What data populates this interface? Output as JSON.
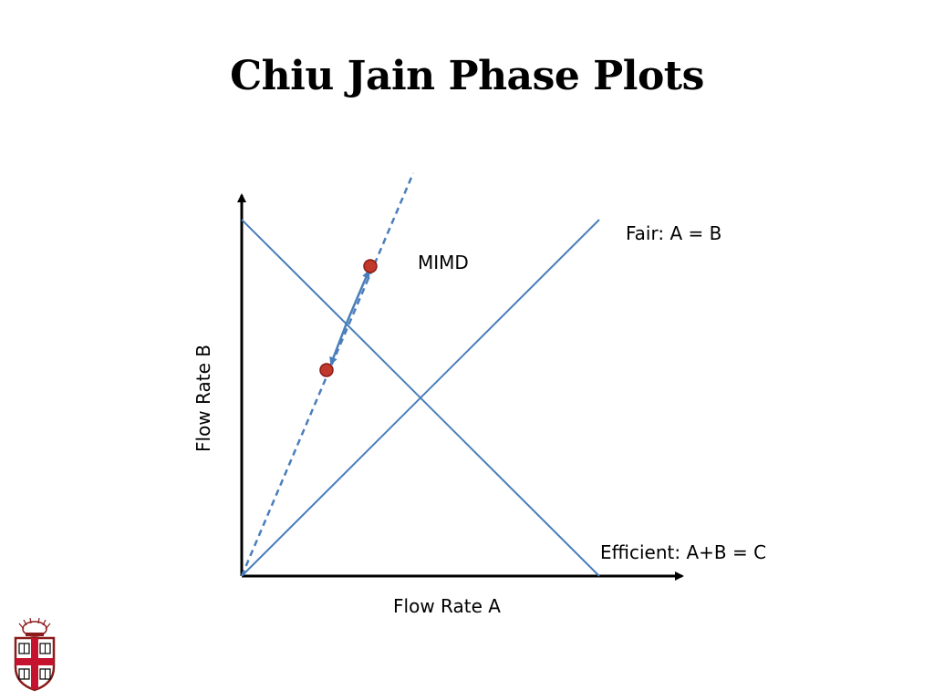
{
  "title": "Chiu Jain Phase Plots",
  "diagram": {
    "x_axis_label": "Flow Rate A",
    "y_axis_label": "Flow Rate B",
    "fair_line_label": "Fair: A = B",
    "efficient_line_label": "Efficient: A+B = C",
    "policy_label": "MIMD"
  },
  "colors": {
    "line": "#4a7ebb",
    "point_fill": "#c0392b",
    "point_stroke": "#8b1a1a",
    "axis": "#000000"
  },
  "logo": {
    "name": "university-shield-logo"
  }
}
